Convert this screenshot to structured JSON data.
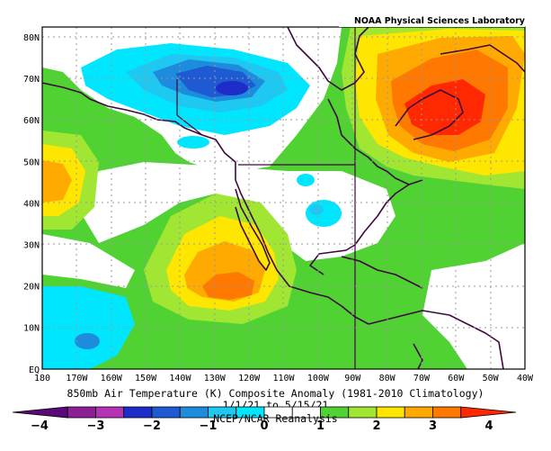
{
  "credit": "NOAA Physical Sciences Laboratory",
  "caption": {
    "line1": "850mb Air Temperature (K) Composite Anomaly (1981-2010 Climatology)",
    "line2": "1/1/21  to 5/15/21",
    "line3": "NCEP/NCAR Reanalysis"
  },
  "lat_labels": [
    "80N",
    "70N",
    "60N",
    "50N",
    "40N",
    "30N",
    "20N",
    "10N",
    "EQ"
  ],
  "lon_labels": [
    "180",
    "170W",
    "160W",
    "150W",
    "140W",
    "130W",
    "120W",
    "110W",
    "100W",
    "90W",
    "80W",
    "70W",
    "60W",
    "50W",
    "40W"
  ],
  "colorbar": {
    "labels": [
      "−4",
      "−3",
      "−2",
      "−1",
      "0",
      "1",
      "2",
      "3",
      "4"
    ],
    "colors": [
      "#5a0a78",
      "#8c1e96",
      "#b432b4",
      "#1e2dc8",
      "#1e5ad2",
      "#1e8cdc",
      "#1ec8f0",
      "#00e6ff",
      "#ffffff",
      "#ffffff",
      "#50d232",
      "#a0e632",
      "#ffe600",
      "#ffaa00",
      "#ff7800",
      "#ff2800"
    ]
  },
  "fill_colors": {
    "neg": [
      "#1ec8f0",
      "#1e8cdc",
      "#1e5ad2",
      "#1e2dc8",
      "#b432b4"
    ],
    "pos": [
      "#50d232",
      "#a0e632",
      "#ffe600",
      "#ffaa00",
      "#ff7800",
      "#ff2800"
    ],
    "zero": "#ffffff",
    "coast": "#3c0a3c"
  }
}
